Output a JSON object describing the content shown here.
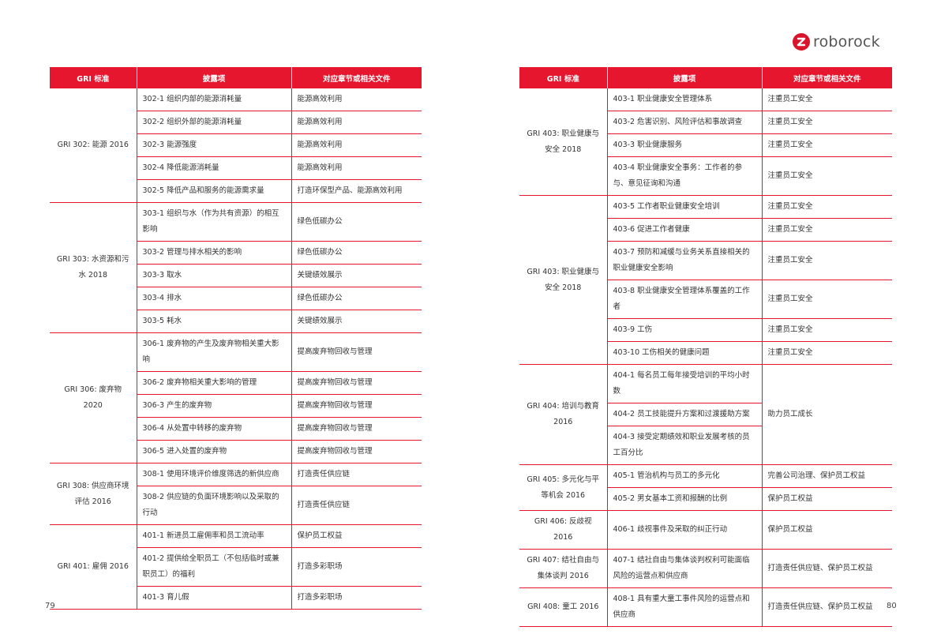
{
  "brand": {
    "name": "roborock",
    "color": "#d9142b"
  },
  "pages": {
    "left": "79",
    "right": "80"
  },
  "headers": [
    "GRI 标准",
    "披露项",
    "对应章节或相关文件"
  ],
  "left_table": [
    {
      "standard": "GRI 302: 能源 2016",
      "rows": [
        {
          "item": "302-1 组织内部的能源消耗量",
          "section": "能源高效利用"
        },
        {
          "item": "302-2 组织外部的能源消耗量",
          "section": "能源高效利用"
        },
        {
          "item": "302-3 能源强度",
          "section": "能源高效利用"
        },
        {
          "item": "302-4 降低能源消耗量",
          "section": "能源高效利用"
        },
        {
          "item": "302-5 降低产品和服务的能源需求量",
          "section": "打造环保型产品、能源高效利用"
        }
      ]
    },
    {
      "standard": "GRI 303: 水资源和污水 2018",
      "rows": [
        {
          "item": "303-1 组织与水（作为共有资源）的相互影响",
          "section": "绿色低碳办公"
        },
        {
          "item": "303-2 管理与排水相关的影响",
          "section": "绿色低碳办公"
        },
        {
          "item": "303-3 取水",
          "section": "关键绩效展示"
        },
        {
          "item": "303-4 排水",
          "section": "绿色低碳办公"
        },
        {
          "item": "303-5 耗水",
          "section": "关键绩效展示"
        }
      ]
    },
    {
      "standard": "GRI 306: 废弃物 2020",
      "rows": [
        {
          "item": "306-1 废弃物的产生及废弃物相关重大影响",
          "section": "提高废弃物回收与管理"
        },
        {
          "item": "306-2 废弃物相关重大影响的管理",
          "section": "提高废弃物回收与管理"
        },
        {
          "item": "306-3 产生的废弃物",
          "section": "提高废弃物回收与管理"
        },
        {
          "item": "306-4 从处置中转移的废弃物",
          "section": "提高废弃物回收与管理"
        },
        {
          "item": "306-5 进入处置的废弃物",
          "section": "提高废弃物回收与管理"
        }
      ]
    },
    {
      "standard": "GRI 308: 供应商环境评估 2016",
      "rows": [
        {
          "item": "308-1 使用环境评价维度筛选的新供应商",
          "section": "打造责任供应链"
        },
        {
          "item": "308-2 供应链的负面环境影响以及采取的行动",
          "section": "打造责任供应链"
        }
      ]
    },
    {
      "standard": "GRI 401: 雇佣 2016",
      "rows": [
        {
          "item": "401-1 新进员工雇佣率和员工流动率",
          "section": "保护员工权益"
        },
        {
          "item": "401-2 提供给全职员工（不包括临时或兼职员工）的福利",
          "section": "打造多彩职场"
        },
        {
          "item": "401-3 育儿假",
          "section": "打造多彩职场"
        }
      ]
    }
  ],
  "right_table": [
    {
      "standard": "GRI 403: 职业健康与安全 2018",
      "rows": [
        {
          "item": "403-1 职业健康安全管理体系",
          "section": "注重员工安全"
        },
        {
          "item": "403-2 危害识别、风险评估和事故调查",
          "section": "注重员工安全"
        },
        {
          "item": "403-3 职业健康服务",
          "section": "注重员工安全"
        },
        {
          "item": "403-4 职业健康安全事务：工作者的参与、意见征询和沟通",
          "section": "注重员工安全"
        }
      ]
    },
    {
      "standard": "GRI 403: 职业健康与安全 2018",
      "rows": [
        {
          "item": "403-5 工作者职业健康安全培训",
          "section": "注重员工安全"
        },
        {
          "item": "403-6 促进工作者健康",
          "section": "注重员工安全"
        },
        {
          "item": "403-7 预防和减缓与业务关系直接相关的职业健康安全影响",
          "section": "注重员工安全"
        },
        {
          "item": "403-8 职业健康安全管理体系覆盖的工作者",
          "section": "注重员工安全"
        },
        {
          "item": "403-9 工伤",
          "section": "注重员工安全"
        },
        {
          "item": "403-10 工伤相关的健康问题",
          "section": "注重员工安全"
        }
      ]
    },
    {
      "standard": "GRI 404: 培训与教育 2016",
      "shared_section": "助力员工成长",
      "rows": [
        {
          "item": "404-1 每名员工每年接受培训的平均小时数"
        },
        {
          "item": "404-2 员工技能提升方案和过渡援助方案"
        },
        {
          "item": "404-3 接受定期绩效和职业发展考核的员工百分比"
        }
      ]
    },
    {
      "standard": "GRI 405: 多元化与平等机会 2016",
      "rows": [
        {
          "item": "405-1 管治机构与员工的多元化",
          "section": "完善公司治理、保护员工权益"
        },
        {
          "item": "405-2 男女基本工资和报酬的比例",
          "section": "保护员工权益"
        }
      ]
    },
    {
      "standard": "GRI 406: 反歧视 2016",
      "rows": [
        {
          "item": "406-1 歧视事件及采取的纠正行动",
          "section": "保护员工权益"
        }
      ]
    },
    {
      "standard": "GRI 407: 结社自由与集体谈判 2016",
      "rows": [
        {
          "item": "407-1 结社自由与集体谈判权利可能面临风险的运营点和供应商",
          "section": "打造责任供应链、保护员工权益"
        }
      ]
    },
    {
      "standard": "GRI 408: 童工 2016",
      "rows": [
        {
          "item": "408-1 具有重大童工事件风险的运营点和供应商",
          "section": "打造责任供应链、保护员工权益"
        }
      ]
    }
  ]
}
